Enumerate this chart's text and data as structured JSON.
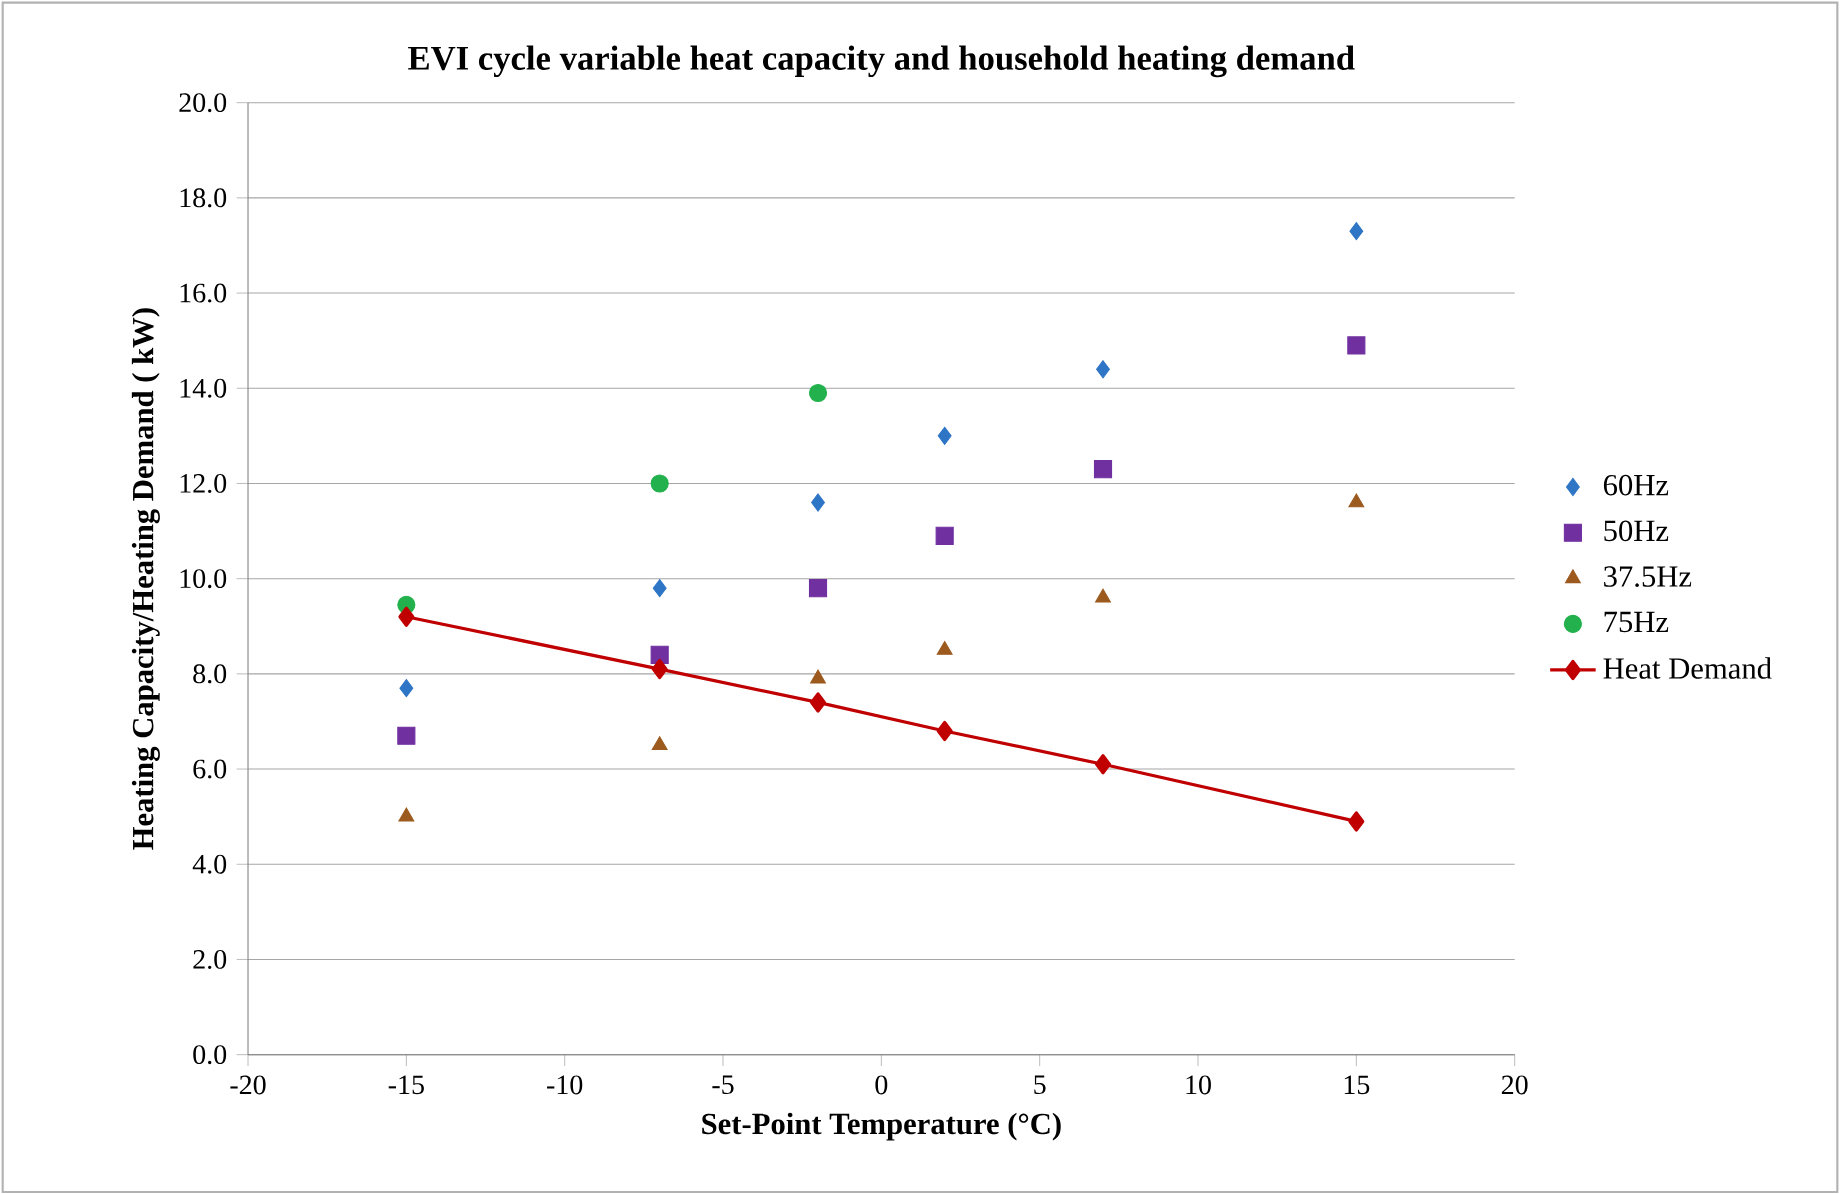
{
  "chart_data": {
    "type": "scatter",
    "title": "EVI cycle variable heat capacity and household heating demand",
    "xlabel": "Set-Point Temperature (°C)",
    "ylabel": "Heating Capacity/Heating Demand ( kW)",
    "x": [
      -15,
      -7,
      -2,
      2,
      7,
      15
    ],
    "series": [
      {
        "name": "60Hz",
        "color": "#2e75c6",
        "marker": "diamond",
        "values": [
          7.7,
          9.8,
          11.6,
          13.0,
          14.4,
          17.3
        ]
      },
      {
        "name": "50Hz",
        "color": "#7030a0",
        "marker": "square",
        "values": [
          6.7,
          8.4,
          9.8,
          10.9,
          12.3,
          14.9
        ]
      },
      {
        "name": "37.5Hz",
        "color": "#9c5a1e",
        "marker": "triangle",
        "values": [
          5.0,
          6.5,
          7.9,
          8.5,
          9.6,
          11.6
        ]
      },
      {
        "name": "75Hz",
        "color": "#22b14c",
        "marker": "circle",
        "x": [
          -15,
          -7,
          -2
        ],
        "values": [
          9.45,
          12.0,
          13.9
        ]
      },
      {
        "name": "Heat Demand",
        "type": "line",
        "color": "#c00000",
        "marker": "diamond",
        "line_style": "solid",
        "values": [
          9.2,
          8.1,
          7.4,
          6.8,
          6.1,
          4.9
        ]
      }
    ],
    "xlim": [
      -20,
      20
    ],
    "xticks": [
      -20,
      -15,
      -10,
      -5,
      0,
      5,
      10,
      15,
      20
    ],
    "ylim": [
      0,
      20
    ],
    "yticks": [
      {
        "value": 0,
        "label": "0.0"
      },
      {
        "value": 2,
        "label": "2.0"
      },
      {
        "value": 4,
        "label": "4.0"
      },
      {
        "value": 6,
        "label": "6.0"
      },
      {
        "value": 8,
        "label": "8.0"
      },
      {
        "value": 10,
        "label": "10.0"
      },
      {
        "value": 12,
        "label": "12.0"
      },
      {
        "value": 14,
        "label": "14.0"
      },
      {
        "value": 16,
        "label": "16.0"
      },
      {
        "value": 18,
        "label": "18.0"
      },
      {
        "value": 20,
        "label": "20.0"
      }
    ],
    "grid": "y",
    "legend": "right"
  }
}
